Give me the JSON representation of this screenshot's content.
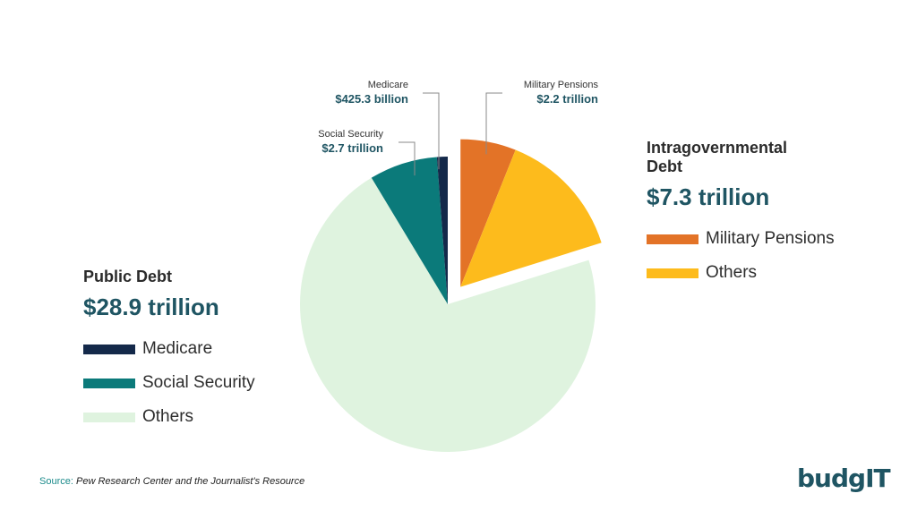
{
  "chart_data": {
    "type": "pie",
    "series": [
      {
        "name": "Public Debt",
        "total": "$28.9 trillion",
        "slices": [
          {
            "label": "Medicare",
            "value": 0.4253,
            "display": "$425.3 billion",
            "color": "#14294a"
          },
          {
            "label": "Social Security",
            "value": 2.7,
            "display": "$2.7 trillion",
            "color": "#0b7a7a"
          },
          {
            "label": "Others",
            "value": 25.7747,
            "display": "",
            "color": "#dff3df"
          }
        ]
      },
      {
        "name": "Intragovernmental Debt",
        "total": "$7.3 trillion",
        "slices": [
          {
            "label": "Military Pensions",
            "value": 2.2,
            "display": "$2.2 trillion",
            "color": "#e37327"
          },
          {
            "label": "Others",
            "value": 5.1,
            "display": "",
            "color": "#fdbb1c"
          }
        ]
      }
    ],
    "callouts": [
      {
        "label": "Medicare",
        "value": "$425.3 billion"
      },
      {
        "label": "Social Security",
        "value": "$2.7 trillion"
      },
      {
        "label": "Military Pensions",
        "value": "$2.2 trillion"
      }
    ]
  },
  "legend": {
    "public": {
      "title": "Public Debt",
      "total": "$28.9 trillion",
      "items": [
        {
          "label": "Medicare",
          "color": "#14294a"
        },
        {
          "label": "Social Security",
          "color": "#0b7a7a"
        },
        {
          "label": "Others",
          "color": "#dff3df"
        }
      ]
    },
    "intra": {
      "title": "Intragovernmental Debt",
      "total": "$7.3 trillion",
      "items": [
        {
          "label": "Military Pensions",
          "color": "#e37327"
        },
        {
          "label": "Others",
          "color": "#fdbb1c"
        }
      ]
    }
  },
  "source": {
    "key": "Source:",
    "text": "Pew Research Center and the Journalist's Resource"
  },
  "logo": {
    "text": "budgIT"
  }
}
